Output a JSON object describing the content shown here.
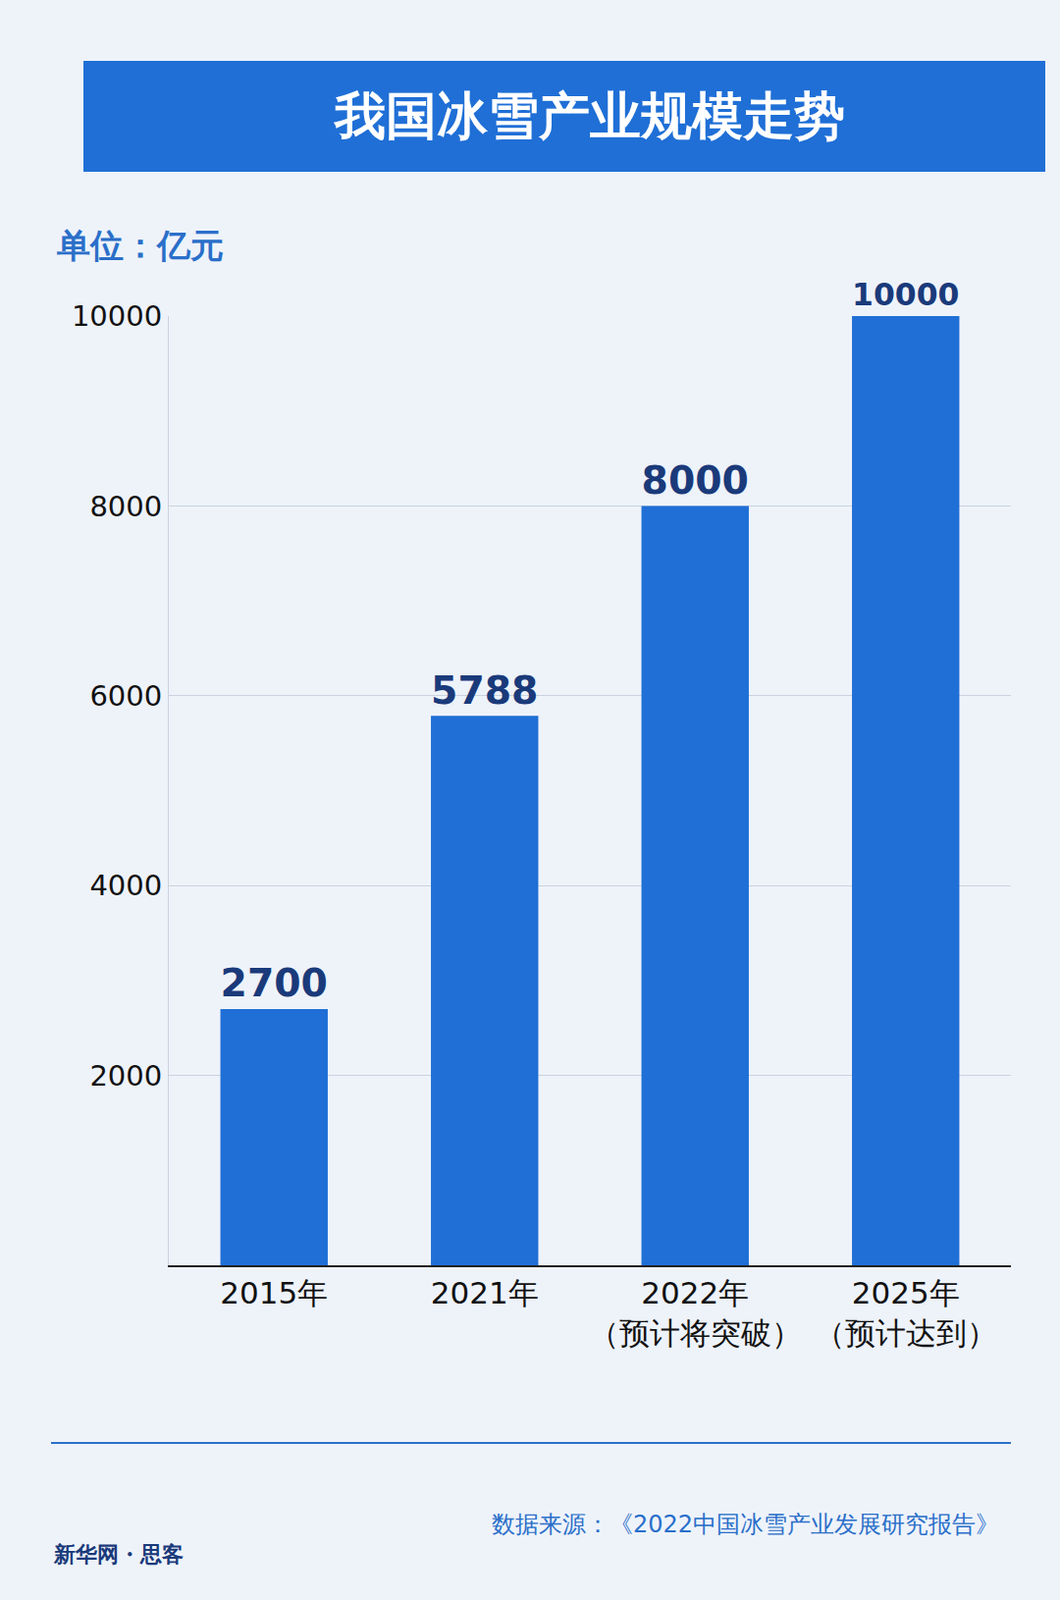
{
  "chart_data": {
    "type": "bar",
    "title": "我国冰雪产业规模走势",
    "unit_label": "单位：亿元",
    "categories": [
      "2015年",
      "2021年",
      "2022年\n（预计将突破）",
      "2025年\n（预计达到）"
    ],
    "values": [
      2700,
      5788,
      8000,
      10000
    ],
    "color": "#1f6fd6",
    "ylim": [
      0,
      10000
    ],
    "yticks": [
      2000,
      4000,
      6000,
      8000,
      10000
    ],
    "grid": true,
    "data_labels": true,
    "source": "数据来源：《2022中国冰雪产业发展研究报告》",
    "credit": "新华网・思客"
  }
}
